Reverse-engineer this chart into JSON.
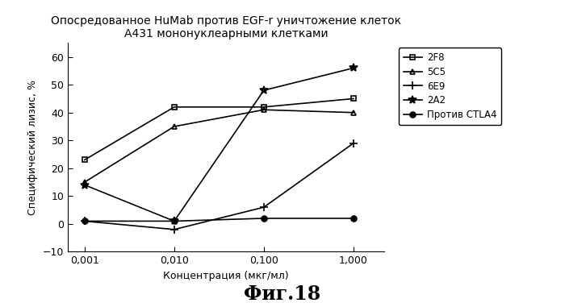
{
  "title_line1": "Опосредованное HuMab против EGF-r уничтожение клеток",
  "title_line2": "A431 мононуклеарными клетками",
  "xlabel": "Концентрация (мкг/мл)",
  "ylabel": "Специфический лизис, %",
  "fig_label": "Фиг.18",
  "x_values": [
    0.001,
    0.01,
    0.1,
    1.0
  ],
  "x_tick_labels": [
    "0,001",
    "0,010",
    "0,100",
    "1,000"
  ],
  "ylim": [
    -10,
    65
  ],
  "yticks": [
    -10,
    0,
    10,
    20,
    30,
    40,
    50,
    60
  ],
  "series": [
    {
      "name": "2F8",
      "values": [
        23,
        42,
        42,
        45
      ],
      "marker": "s",
      "markerfacecolor": "none",
      "markeredgecolor": "#000000",
      "markersize": 5
    },
    {
      "name": "5C5",
      "values": [
        15,
        35,
        41,
        40
      ],
      "marker": "^",
      "markerfacecolor": "none",
      "markeredgecolor": "#000000",
      "markersize": 5
    },
    {
      "name": "6E9",
      "values": [
        1,
        -2,
        6,
        29
      ],
      "marker": "+",
      "markerfacecolor": "none",
      "markeredgecolor": "#000000",
      "markersize": 7
    },
    {
      "name": "2A2",
      "values": [
        14,
        1,
        48,
        56
      ],
      "marker": "*",
      "markerfacecolor": "#000000",
      "markeredgecolor": "#000000",
      "markersize": 7
    },
    {
      "name": "Против CTLA4",
      "values": [
        1,
        1,
        2,
        2
      ],
      "marker": "o",
      "markerfacecolor": "#000000",
      "markeredgecolor": "#000000",
      "markersize": 5
    }
  ],
  "line_color": "#000000",
  "linewidth": 1.2,
  "background_color": "#ffffff",
  "title_fontsize": 10,
  "axis_label_fontsize": 9,
  "legend_fontsize": 8.5,
  "tick_fontsize": 9,
  "fig_label_fontsize": 17
}
